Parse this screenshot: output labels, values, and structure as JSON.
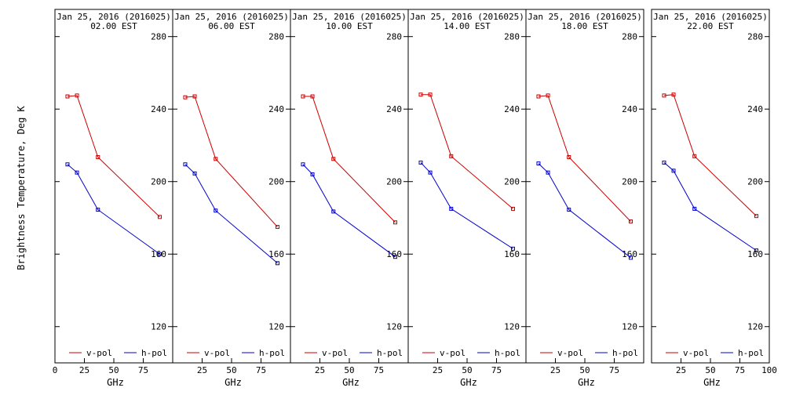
{
  "chart_data": {
    "type": "line",
    "ylabel": "Brightness Temperature, Deg K",
    "xlabel": "GHz",
    "xlim": [
      0,
      100
    ],
    "ylim": [
      100,
      295
    ],
    "x_ticks": [
      0,
      25,
      50,
      75,
      100
    ],
    "y_ticks": [
      120,
      160,
      200,
      240,
      280
    ],
    "legend_placement": "bottom",
    "series_colors": {
      "v-pol": "#cc0000",
      "h-pol": "#0000cc"
    },
    "panels": [
      {
        "title": "Jan 25, 2016 (2016025)",
        "subtitle": "02.00 EST",
        "legend": [
          "v-pol",
          "h-pol"
        ],
        "series": [
          {
            "name": "v-pol",
            "x": [
              10.65,
              18.7,
              36.5,
              89.0
            ],
            "values": [
              247,
              247.5,
              213.5,
              180.5
            ]
          },
          {
            "name": "h-pol",
            "x": [
              10.65,
              18.7,
              36.5,
              89.0
            ],
            "values": [
              209.5,
              205,
              184.5,
              160
            ]
          }
        ]
      },
      {
        "title": "Jan 25, 2016 (2016025)",
        "subtitle": "06.00 EST",
        "legend": [
          "v-pol",
          "h-pol"
        ],
        "series": [
          {
            "name": "v-pol",
            "x": [
              10.65,
              18.7,
              36.5,
              89.0
            ],
            "values": [
              246.5,
              247,
              212.5,
              175
            ]
          },
          {
            "name": "h-pol",
            "x": [
              10.65,
              18.7,
              36.5,
              89.0
            ],
            "values": [
              209.5,
              204.5,
              184,
              155
            ]
          }
        ]
      },
      {
        "title": "Jan 25, 2016 (2016025)",
        "subtitle": "10.00 EST",
        "legend": [
          "v-pol",
          "h-pol"
        ],
        "series": [
          {
            "name": "v-pol",
            "x": [
              10.65,
              18.7,
              36.5,
              89.0
            ],
            "values": [
              247,
              247,
              212.5,
              177.5
            ]
          },
          {
            "name": "h-pol",
            "x": [
              10.65,
              18.7,
              36.5,
              89.0
            ],
            "values": [
              209.5,
              204,
              183.5,
              158.5
            ]
          }
        ]
      },
      {
        "title": "Jan 25, 2016 (2016025)",
        "subtitle": "14.00 EST",
        "legend": [
          "v-pol",
          "h-pol"
        ],
        "series": [
          {
            "name": "v-pol",
            "x": [
              10.65,
              18.7,
              36.5,
              89.0
            ],
            "values": [
              248,
              248,
              214,
              185
            ]
          },
          {
            "name": "h-pol",
            "x": [
              10.65,
              18.7,
              36.5,
              89.0
            ],
            "values": [
              210.5,
              205,
              185,
              163
            ]
          }
        ]
      },
      {
        "title": "Jan 25, 2016 (2016025)",
        "subtitle": "18.00 EST",
        "legend": [
          "v-pol",
          "h-pol"
        ],
        "series": [
          {
            "name": "v-pol",
            "x": [
              10.65,
              18.7,
              36.5,
              89.0
            ],
            "values": [
              247,
              247.5,
              213.5,
              178
            ]
          },
          {
            "name": "h-pol",
            "x": [
              10.65,
              18.7,
              36.5,
              89.0
            ],
            "values": [
              210,
              205,
              184.5,
              158
            ]
          }
        ]
      },
      {
        "title": "Jan 25, 2016 (2016025)",
        "subtitle": "22.00 EST",
        "legend": [
          "v-pol",
          "h-pol"
        ],
        "series": [
          {
            "name": "v-pol",
            "x": [
              10.65,
              18.7,
              36.5,
              89.0
            ],
            "values": [
              247.5,
              248,
              214,
              181
            ]
          },
          {
            "name": "h-pol",
            "x": [
              10.65,
              18.7,
              36.5,
              89.0
            ],
            "values": [
              210.5,
              206,
              185,
              162
            ]
          }
        ]
      }
    ]
  }
}
